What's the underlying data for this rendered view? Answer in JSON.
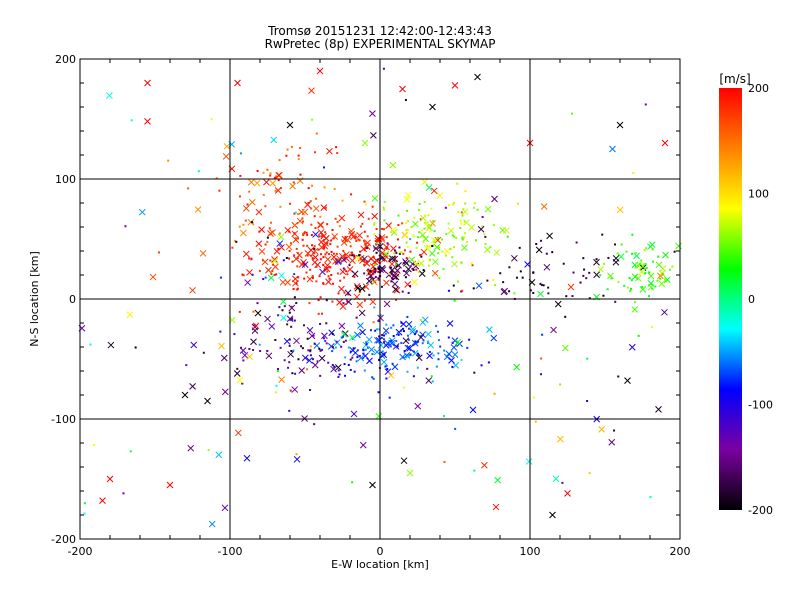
{
  "chart_data": {
    "type": "scatter",
    "title": "Tromsø 20151231 12:42:00-12:43:43",
    "subtitle": "RwPretec (8p) EXPERIMENTAL SKYMAP",
    "xlabel": "E-W location [km]",
    "ylabel": "N-S location [km]",
    "xlim": [
      -200,
      200
    ],
    "ylim": [
      -200,
      200
    ],
    "x_ticks": [
      "-200",
      "-100",
      "0",
      "100",
      "200"
    ],
    "y_ticks": [
      "-200",
      "-100",
      "0",
      "100",
      "200"
    ],
    "grid": true,
    "grid_lines_at": [
      -100,
      0,
      100
    ],
    "colorbar": {
      "label": "[m/s]",
      "range": [
        -200,
        200
      ],
      "ticks": [
        "200",
        "100",
        "0",
        "-100",
        "-200"
      ],
      "colormap": [
        "#000000",
        "#7b00a0",
        "#0000ff",
        "#00ffff",
        "#00ff00",
        "#ffff00",
        "#ff8000",
        "#ff0000"
      ]
    },
    "markers": {
      "cross": "x",
      "dot": "small dot"
    },
    "series_clusters": [
      {
        "center": [
          -30,
          35
        ],
        "spread": [
          28,
          18
        ],
        "count": 300,
        "velocity": [
          170,
          200
        ],
        "cross_fraction": 0.35
      },
      {
        "center": [
          -70,
          90
        ],
        "spread": [
          25,
          25
        ],
        "count": 90,
        "velocity": [
          130,
          200
        ],
        "cross_fraction": 0.3
      },
      {
        "center": [
          5,
          25
        ],
        "spread": [
          14,
          10
        ],
        "count": 80,
        "velocity": [
          -200,
          -150
        ],
        "cross_fraction": 0.4
      },
      {
        "center": [
          35,
          55
        ],
        "spread": [
          20,
          18
        ],
        "count": 140,
        "velocity": [
          40,
          90
        ],
        "cross_fraction": 0.2
      },
      {
        "center": [
          10,
          -40
        ],
        "spread": [
          24,
          12
        ],
        "count": 180,
        "velocity": [
          -95,
          -40
        ],
        "cross_fraction": 0.3
      },
      {
        "center": [
          -50,
          -40
        ],
        "spread": [
          30,
          25
        ],
        "count": 120,
        "velocity": [
          -200,
          -110
        ],
        "cross_fraction": 0.35
      },
      {
        "center": [
          110,
          25
        ],
        "spread": [
          25,
          15
        ],
        "count": 60,
        "velocity": [
          -200,
          -160
        ],
        "cross_fraction": 0.3
      },
      {
        "center": [
          175,
          20
        ],
        "spread": [
          12,
          12
        ],
        "count": 70,
        "velocity": [
          10,
          70
        ],
        "cross_fraction": 0.3
      },
      {
        "center": [
          0,
          0
        ],
        "spread": [
          120,
          120
        ],
        "count": 220,
        "velocity": [
          -200,
          200
        ],
        "cross_fraction": 0.45
      }
    ],
    "points": [
      {
        "x": 65,
        "y": 185,
        "v": -200,
        "m": "cross"
      },
      {
        "x": 35,
        "y": 160,
        "v": -200,
        "m": "cross"
      },
      {
        "x": -155,
        "y": 180,
        "v": 200,
        "m": "cross"
      },
      {
        "x": -155,
        "y": 148,
        "v": 200,
        "m": "cross"
      },
      {
        "x": -95,
        "y": 180,
        "v": 200,
        "m": "cross"
      },
      {
        "x": -40,
        "y": 190,
        "v": 200,
        "m": "cross"
      },
      {
        "x": 15,
        "y": 175,
        "v": 200,
        "m": "cross"
      },
      {
        "x": 50,
        "y": 178,
        "v": 200,
        "m": "cross"
      },
      {
        "x": 160,
        "y": 145,
        "v": -200,
        "m": "cross"
      },
      {
        "x": 190,
        "y": 130,
        "v": 200,
        "m": "cross"
      },
      {
        "x": 155,
        "y": 125,
        "v": -60,
        "m": "cross"
      },
      {
        "x": -180,
        "y": -150,
        "v": 200,
        "m": "cross"
      },
      {
        "x": -185,
        "y": -168,
        "v": 200,
        "m": "cross"
      },
      {
        "x": -140,
        "y": -155,
        "v": 200,
        "m": "cross"
      },
      {
        "x": 125,
        "y": -162,
        "v": 200,
        "m": "cross"
      },
      {
        "x": 115,
        "y": -180,
        "v": -200,
        "m": "cross"
      },
      {
        "x": -5,
        "y": -155,
        "v": -200,
        "m": "cross"
      },
      {
        "x": 165,
        "y": -68,
        "v": -200,
        "m": "cross"
      },
      {
        "x": 20,
        "y": -145,
        "v": 60,
        "m": "cross"
      },
      {
        "x": -130,
        "y": -80,
        "v": -200,
        "m": "cross"
      },
      {
        "x": -115,
        "y": -85,
        "v": -200,
        "m": "cross"
      },
      {
        "x": -60,
        "y": 145,
        "v": -200,
        "m": "cross"
      },
      {
        "x": -10,
        "y": 130,
        "v": 60,
        "m": "cross"
      },
      {
        "x": 100,
        "y": 130,
        "v": 200,
        "m": "cross"
      }
    ]
  }
}
